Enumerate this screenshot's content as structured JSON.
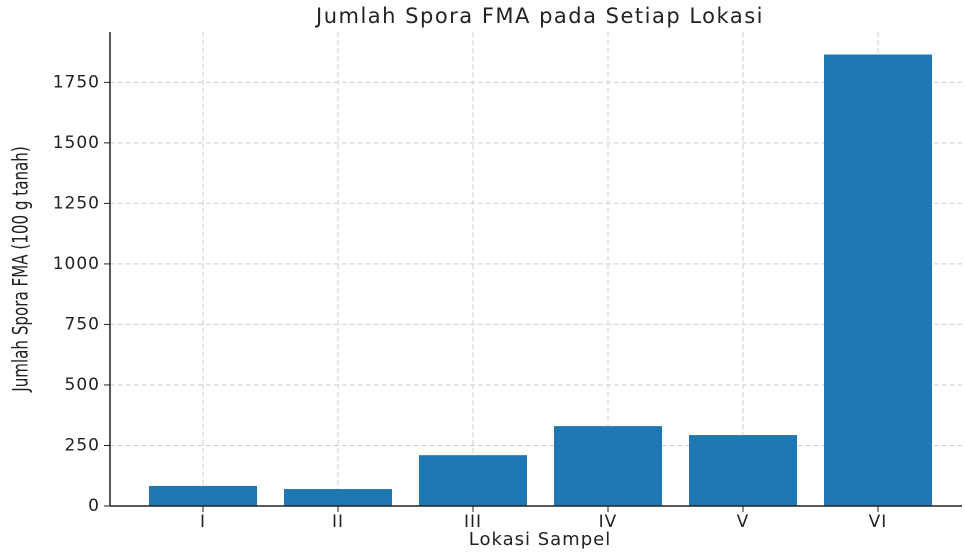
{
  "chart_data": {
    "type": "bar",
    "title": "Jumlah Spora FMA pada Setiap Lokasi",
    "x_label": "Lokasi Sampel",
    "y_label": "Jumlah Spora FMA (100 g tanah)",
    "categories": [
      "I",
      "II",
      "III",
      "IV",
      "V",
      "VI"
    ],
    "values": [
      83,
      70,
      210,
      330,
      293,
      1865
    ],
    "color": "#1f77b4",
    "ylim": [
      0,
      1958
    ],
    "yticks": [
      0,
      250,
      500,
      750,
      1000,
      1250,
      1500,
      1750
    ],
    "grid": true
  }
}
